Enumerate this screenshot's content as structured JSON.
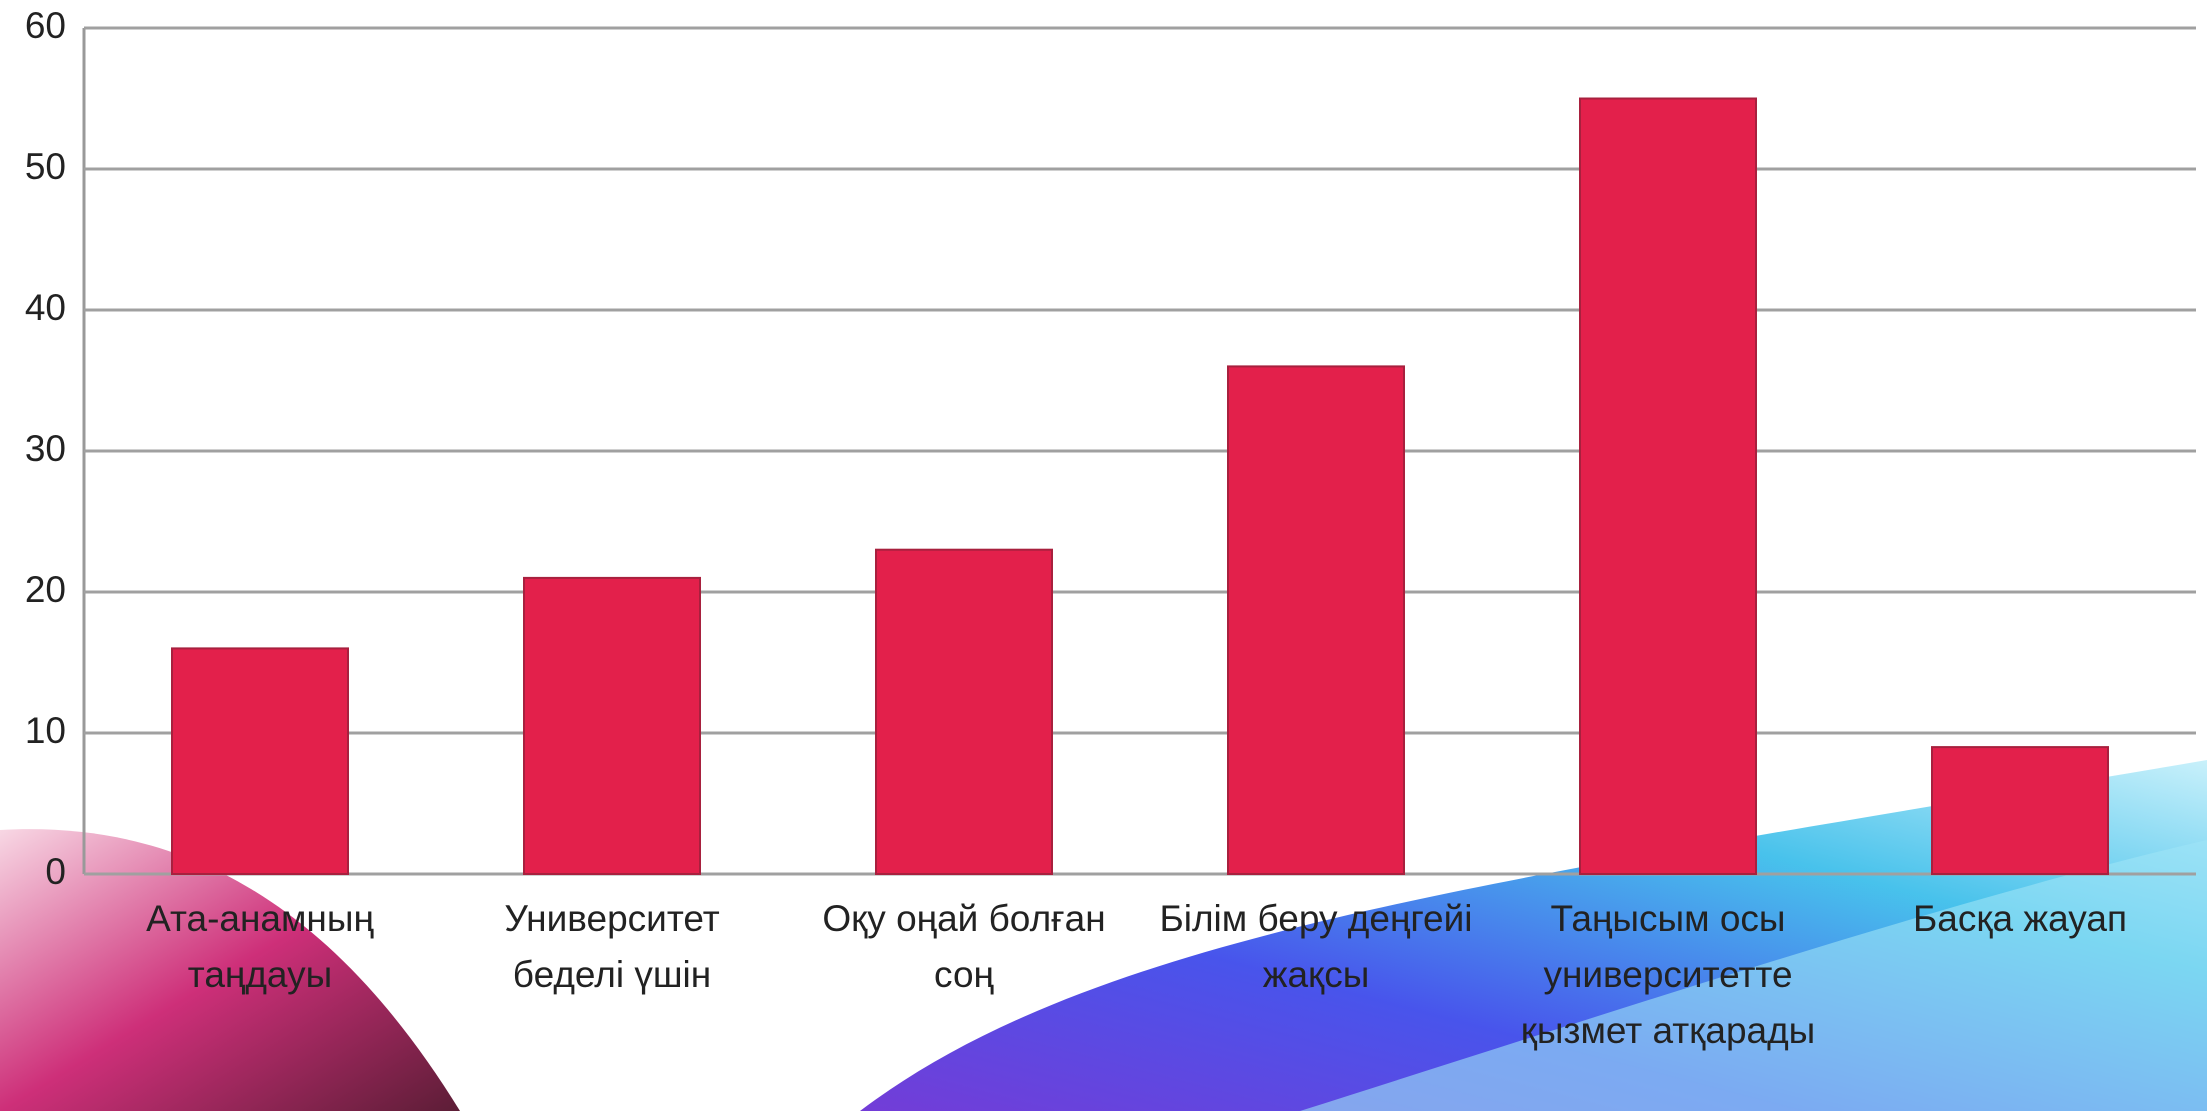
{
  "chart_data": {
    "type": "bar",
    "categories": [
      "Ата-анамның таңдауы",
      "Университет беделі үшін",
      "Оқу оңай болған соң",
      "Білім беру деңгейі жақсы",
      "Таңысым осы университетте қызмет атқарады",
      "Басқа жауап"
    ],
    "values": [
      16,
      21,
      23,
      36,
      55,
      9
    ],
    "color": "#e3204b",
    "ylim": [
      0,
      60
    ],
    "yticks": [
      0,
      10,
      20,
      30,
      40,
      50,
      60
    ],
    "grid": true
  }
}
